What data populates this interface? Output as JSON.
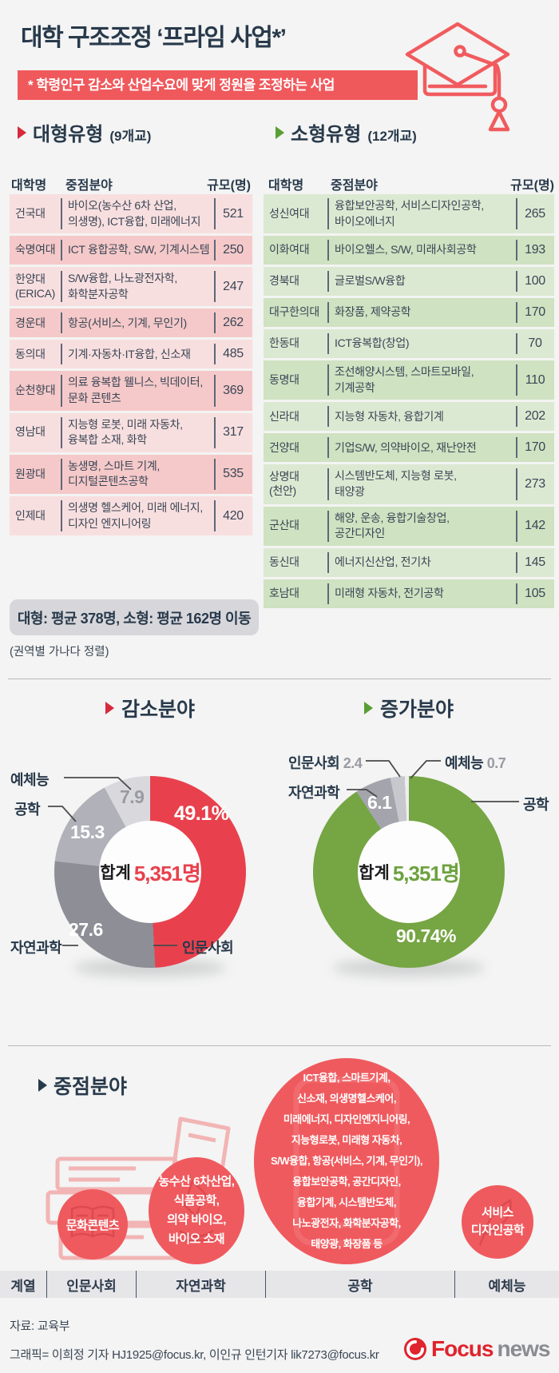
{
  "header": {
    "title": "대학 구조조정 ‘프라임 사업*’",
    "subtitle": "* 학령인구 감소와 산업수요에 맞게 정원을 조정하는 사업"
  },
  "sections": {
    "large": {
      "title": "대형유형",
      "count": "(9개교)"
    },
    "small": {
      "title": "소형유형",
      "count": "(12개교)"
    }
  },
  "tables": {
    "columns": [
      "대학명",
      "중점분야",
      "규모(명)"
    ],
    "summary": "대형: 평균 378명, 소형: 평균 162명 이동",
    "note": "(권역별 가나다 정렬)",
    "large": {
      "rows": [
        {
          "name_lines": [
            "건국대"
          ],
          "major_lines": [
            "바이오(농수산 6차 산업,",
            "의생명),  ICT융합, 미래에너지"
          ],
          "size": "521"
        },
        {
          "name_lines": [
            "숙명여대"
          ],
          "major_lines": [
            "ICT 융합공학, S/W, 기계시스템"
          ],
          "size": "250"
        },
        {
          "name_lines": [
            "한양대",
            "(ERICA)"
          ],
          "major_lines": [
            "S/W융합, 나노광전자학,",
            "화학분자공학"
          ],
          "size": "247"
        },
        {
          "name_lines": [
            "경운대"
          ],
          "major_lines": [
            "항공(서비스, 기계, 무인기)"
          ],
          "size": "262"
        },
        {
          "name_lines": [
            "동의대"
          ],
          "major_lines": [
            "기계·자동차·IT융합, 신소재"
          ],
          "size": "485"
        },
        {
          "name_lines": [
            "순천향대"
          ],
          "major_lines": [
            "의료 융복합 웰니스, 빅데이터,",
            "문화 콘텐츠"
          ],
          "size": "369"
        },
        {
          "name_lines": [
            "영남대"
          ],
          "major_lines": [
            "지능형 로봇, 미래 자동차,",
            "융복합 소재, 화학"
          ],
          "size": "317"
        },
        {
          "name_lines": [
            "원광대"
          ],
          "major_lines": [
            "농생명, 스마트 기계,",
            "디지털콘텐츠공학"
          ],
          "size": "535"
        },
        {
          "name_lines": [
            "인제대"
          ],
          "major_lines": [
            "의생명 헬스케어, 미래 에너지,",
            "디자인 엔지니어링"
          ],
          "size": "420"
        }
      ]
    },
    "small": {
      "rows": [
        {
          "name_lines": [
            "성신여대"
          ],
          "major_lines": [
            "융합보안공학, 서비스디자인공학,",
            "바이오에너지"
          ],
          "size": "265"
        },
        {
          "name_lines": [
            "이화여대"
          ],
          "major_lines": [
            "바이오헬스, S/W, 미래사회공학"
          ],
          "size": "193"
        },
        {
          "name_lines": [
            "경북대"
          ],
          "major_lines": [
            "글로벌S/W융합"
          ],
          "size": "100"
        },
        {
          "name_lines": [
            "대구한의대"
          ],
          "major_lines": [
            "화장품, 제약공학"
          ],
          "size": "170"
        },
        {
          "name_lines": [
            "한동대"
          ],
          "major_lines": [
            "ICT융복합(창업)"
          ],
          "size": "70"
        },
        {
          "name_lines": [
            "동명대"
          ],
          "major_lines": [
            "조선해양시스템, 스마트모바일,",
            "기계공학"
          ],
          "size": "110"
        },
        {
          "name_lines": [
            "신라대"
          ],
          "major_lines": [
            "지능형 자동차, 융합기계"
          ],
          "size": "202"
        },
        {
          "name_lines": [
            "건양대"
          ],
          "major_lines": [
            "기업S/W, 의약바이오, 재난안전"
          ],
          "size": "170"
        },
        {
          "name_lines": [
            "상명대",
            "(천안)"
          ],
          "major_lines": [
            "시스템반도체, 지능형 로봇,",
            "태양광"
          ],
          "size": "273"
        },
        {
          "name_lines": [
            "군산대"
          ],
          "major_lines": [
            "해양, 운송, 융합기술창업,",
            "공간디자인"
          ],
          "size": "142"
        },
        {
          "name_lines": [
            "동신대"
          ],
          "major_lines": [
            "에너지신산업, 전기차"
          ],
          "size": "145"
        },
        {
          "name_lines": [
            "호남대"
          ],
          "major_lines": [
            "미래형 자동차, 전기공학"
          ],
          "size": "105"
        }
      ]
    }
  },
  "chart_data": [
    {
      "type": "pie",
      "variant": "donut",
      "title": "감소분야",
      "total_label": "합계",
      "total_value": "5,351명",
      "legend_position": "around",
      "slices": [
        {
          "label": "인문사회",
          "value": 49.1,
          "display": "49.1%",
          "color": "#e8414d"
        },
        {
          "label": "자연과학",
          "value": 27.6,
          "display": "27.6",
          "color": "#8e8e97"
        },
        {
          "label": "공학",
          "value": 15.3,
          "display": "15.3",
          "color": "#b1b1b9"
        },
        {
          "label": "예체능",
          "value": 7.9,
          "display": "7.9",
          "color": "#d9d9dd"
        }
      ]
    },
    {
      "type": "pie",
      "variant": "donut",
      "title": "증가분야",
      "total_label": "합계",
      "total_value": "5,351명",
      "legend_position": "around",
      "slices": [
        {
          "label": "공학",
          "value": 90.74,
          "display": "90.74%",
          "color": "#76a543"
        },
        {
          "label": "자연과학",
          "value": 6.1,
          "display": "6.1",
          "color": "#a4a4ad"
        },
        {
          "label": "인문사회",
          "value": 2.4,
          "display": "2.4",
          "color": "#c7c7cd"
        },
        {
          "label": "예체능",
          "value": 0.7,
          "display": "0.7",
          "color": "#eeeef0"
        }
      ]
    }
  ],
  "focus": {
    "title": "중점분야",
    "bubbles": [
      {
        "category": "인문사회",
        "lines": [
          "문화콘텐츠"
        ]
      },
      {
        "category": "자연과학",
        "lines": [
          "농수산 6차산업,",
          "식품공학,",
          "의약 바이오,",
          "바이오 소재"
        ]
      },
      {
        "category": "공학",
        "lines": [
          "ICT융합, 스마트기계,",
          "신소재, 의생명헬스케어,",
          "미래에너지, 디자인엔지니어링,",
          "지능형로봇, 미래형 자동차,",
          "S/W융합, 항공(서비스, 기계, 무인기),",
          "융합보안공학, 공간디자인,",
          "융합기계, 시스템반도체,",
          "나노광전자, 화학분자공학,",
          "태양광, 화장품 등"
        ]
      },
      {
        "category": "예체능",
        "lines": [
          "서비스",
          "디자인공학"
        ]
      }
    ],
    "row_label": "계열",
    "categories": [
      "계열",
      "인문사회",
      "자연과학",
      "공학",
      "예체능"
    ]
  },
  "footer": {
    "source": "자료: 교육부",
    "credit": "그래픽= 이희정 기자 HJ1925@focus.kr, 이인규 인턴기자  lik7273@focus.kr",
    "logo_brand": "Focus",
    "logo_suffix": "news"
  },
  "colors": {
    "accent_red": "#f0595c",
    "accent_green": "#5a9e33",
    "navy": "#28394b",
    "chart_red": "#e8414d",
    "chart_green": "#76a543",
    "row_pink_light": "#f8dfdf",
    "row_pink_dark": "#f5c9c9",
    "row_green_light": "#dce9d2",
    "row_green_dark": "#cfe2c1"
  }
}
